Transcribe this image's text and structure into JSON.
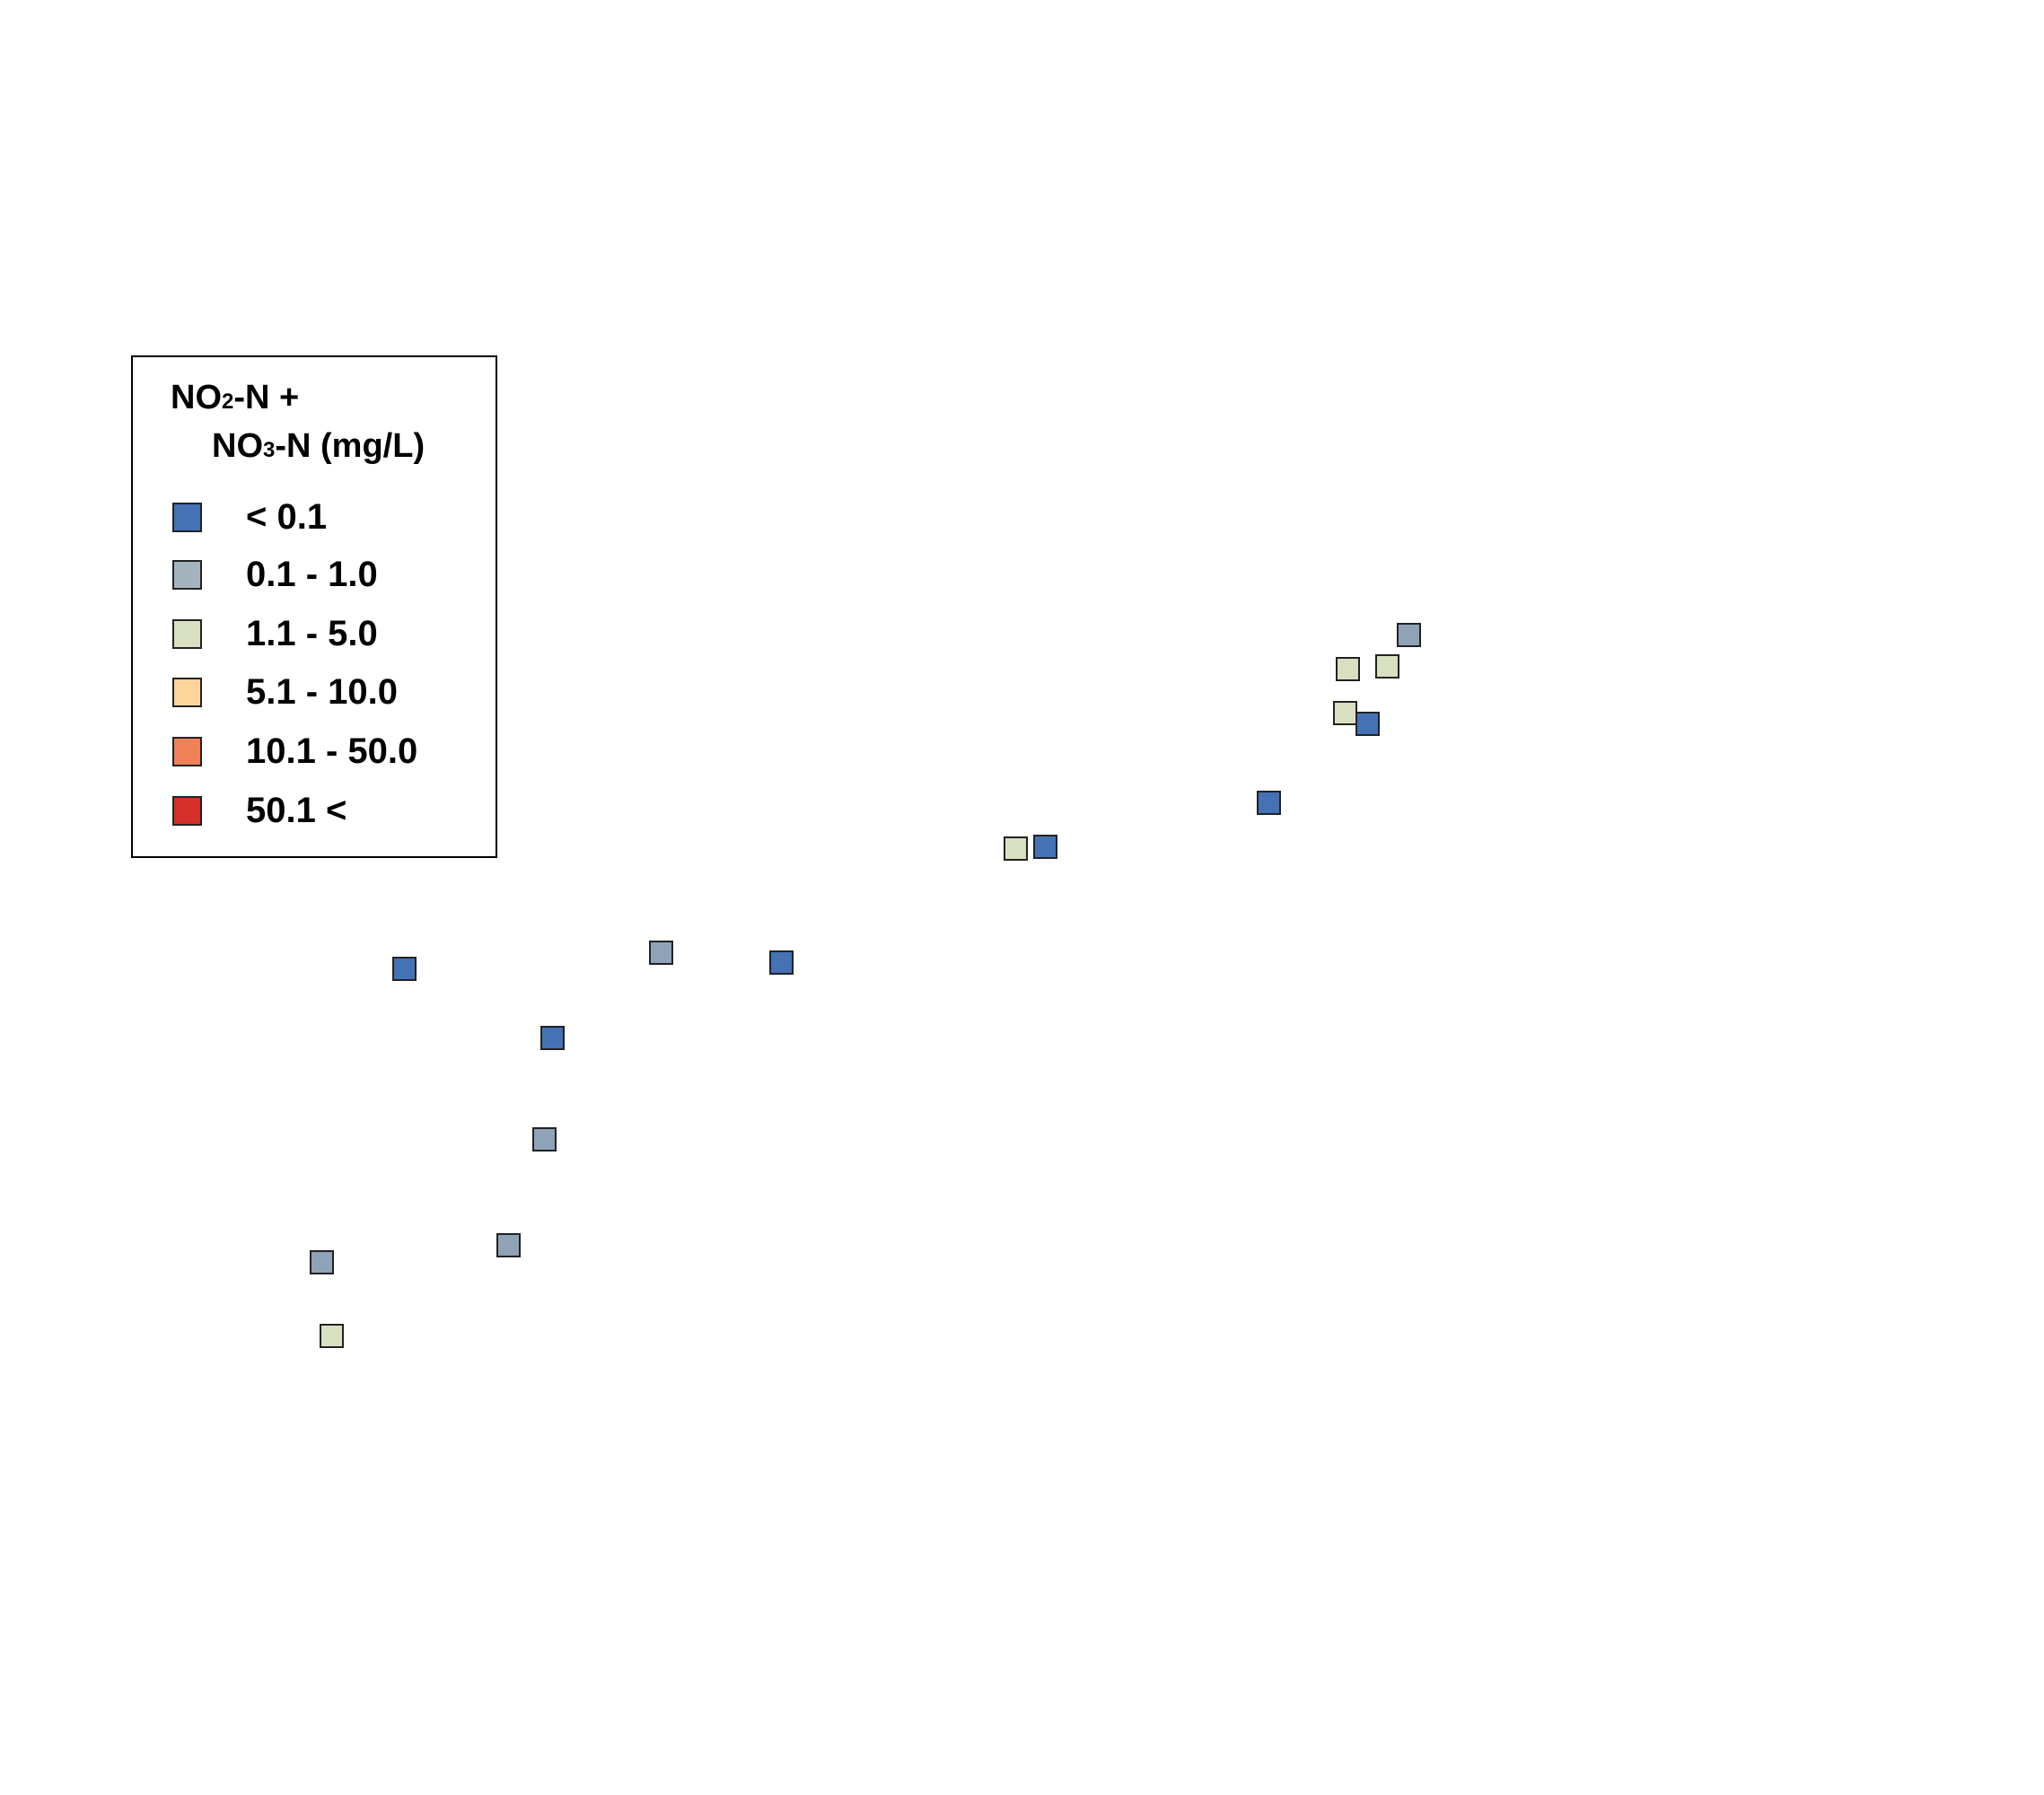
{
  "legend": {
    "title_line1_a": "NO",
    "title_line1_sub": "2",
    "title_line1_b": "-N +",
    "title_line2_a": "NO",
    "title_line2_sub": "3",
    "title_line2_b": "-N (mg/L)",
    "items": [
      {
        "label": "< 0.1",
        "color": "#4472b4"
      },
      {
        "label": "0.1 - 1.0",
        "color": "#a4b4bf"
      },
      {
        "label": "1.1 - 5.0",
        "color": "#d9e0c1"
      },
      {
        "label": "5.1 - 10.0",
        "color": "#fcd49c"
      },
      {
        "label": "10.1 - 50.0",
        "color": "#ef8158"
      },
      {
        "label": "50.1 <",
        "color": "#d42f28"
      }
    ]
  },
  "point_colors": {
    "0": "#4472b4",
    "1": "#8fa3b8",
    "2": "#d9e0c1"
  },
  "sites": [
    {
      "class": "0.1 - 1.0"
    },
    {
      "class": "1.1 - 5.0"
    },
    {
      "class": "1.1 - 5.0"
    },
    {
      "class": "< 0.1"
    },
    {
      "class": "1.1 - 5.0"
    },
    {
      "class": "< 0.1"
    },
    {
      "class": "1.1 - 5.0"
    },
    {
      "class": "< 0.1"
    },
    {
      "class": "0.1 - 1.0"
    },
    {
      "class": "< 0.1"
    },
    {
      "class": "< 0.1"
    },
    {
      "class": "< 0.1"
    },
    {
      "class": "0.1 - 1.0"
    },
    {
      "class": "0.1 - 1.0"
    },
    {
      "class": "0.1 - 1.0"
    },
    {
      "class": "1.1 - 5.0"
    }
  ]
}
